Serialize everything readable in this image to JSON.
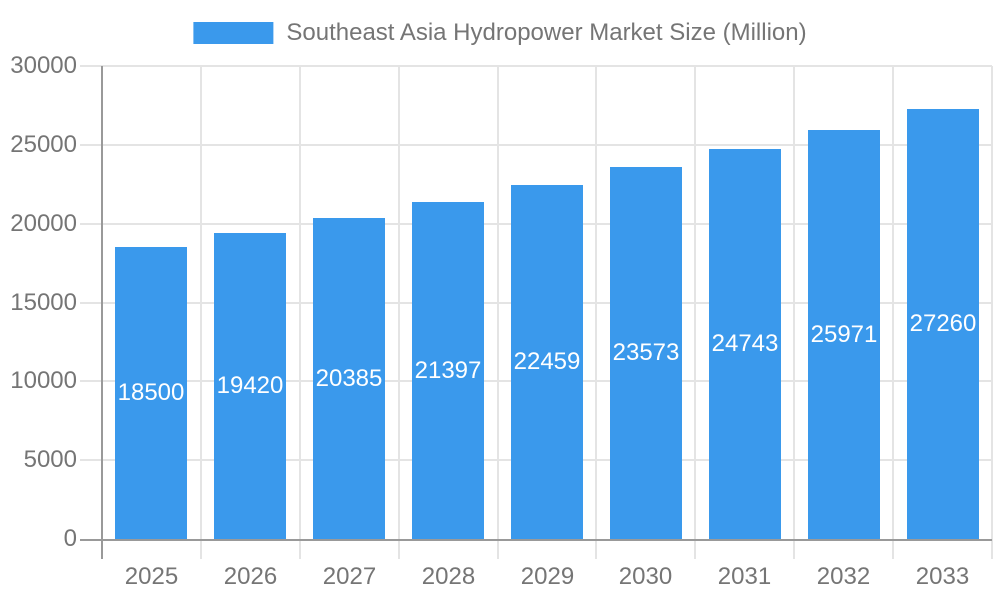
{
  "chart_data": {
    "type": "bar",
    "title": "Southeast Asia Hydropower Market Size (Million)",
    "legend": {
      "position": "top",
      "entries": [
        "Southeast Asia Hydropower Market Size (Million)"
      ]
    },
    "categories": [
      "2025",
      "2026",
      "2027",
      "2028",
      "2029",
      "2030",
      "2031",
      "2032",
      "2033"
    ],
    "series": [
      {
        "name": "Southeast Asia Hydropower Market Size (Million)",
        "values": [
          18500,
          19420,
          20385,
          21397,
          22459,
          23573,
          24743,
          25971,
          27260
        ]
      }
    ],
    "bar_labels": [
      "18500",
      "19420",
      "20385",
      "21397",
      "22459",
      "23573",
      "24743",
      "25971",
      "27260"
    ],
    "xlabel": "",
    "ylabel": "",
    "ylim": [
      0,
      30000
    ],
    "yticks": [
      0,
      5000,
      10000,
      15000,
      20000,
      25000,
      30000
    ],
    "ytick_labels": [
      "0",
      "5000",
      "10000",
      "15000",
      "20000",
      "25000",
      "30000"
    ],
    "grid": true,
    "colors": {
      "bar": "#3A99EC",
      "tick_text": "#757575",
      "axis_line": "#999999",
      "grid_line": "#E4E4E4",
      "bar_label_text": "#FFFFFF",
      "background": "#FFFFFF"
    }
  }
}
